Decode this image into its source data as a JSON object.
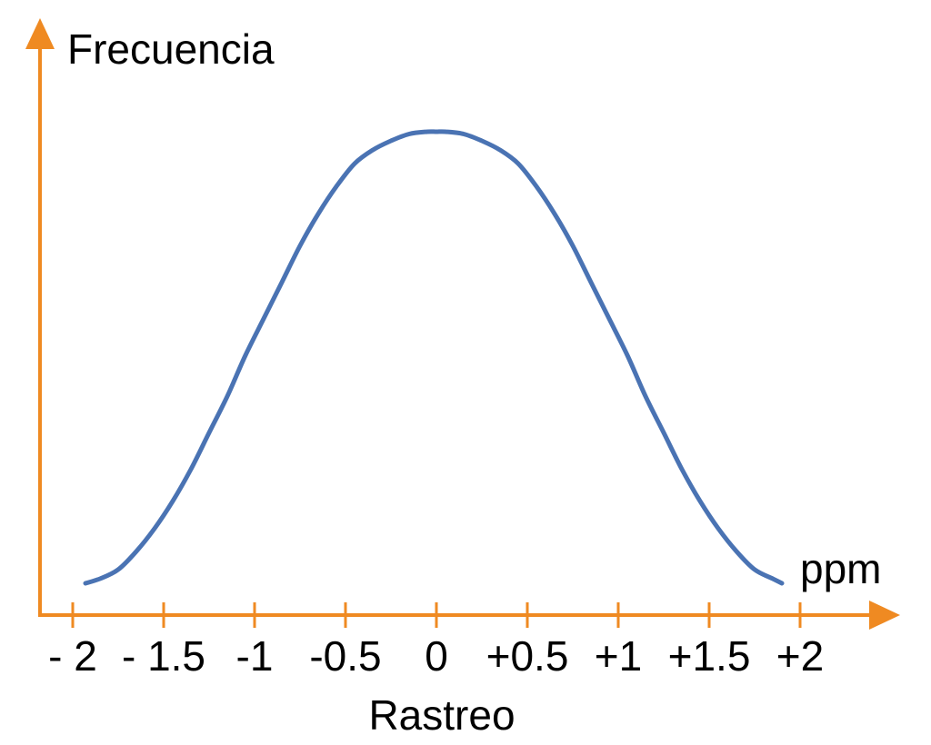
{
  "chart_data": {
    "type": "line",
    "title": "",
    "ylabel": "Frecuencia",
    "xlabel": "Rastreo",
    "xunit": "ppm",
    "xlim": [
      -2,
      2
    ],
    "ticks": [
      {
        "value": -2,
        "label": "- 2"
      },
      {
        "value": -1.5,
        "label": "- 1.5"
      },
      {
        "value": -1,
        "label": "-1"
      },
      {
        "value": -0.5,
        "label": "-0.5"
      },
      {
        "value": 0,
        "label": "0"
      },
      {
        "value": 0.5,
        "label": "+0.5"
      },
      {
        "value": 1,
        "label": "+1"
      },
      {
        "value": 1.5,
        "label": "+1.5"
      },
      {
        "value": 2,
        "label": "+2"
      }
    ],
    "series": [
      {
        "x": [
          -1.93,
          -1.85,
          -1.75,
          -1.65,
          -1.55,
          -1.45,
          -1.35,
          -1.25,
          -1.15,
          -1.05,
          -0.95,
          -0.85,
          -0.75,
          -0.65,
          -0.55,
          -0.45,
          -0.35,
          -0.25,
          -0.15,
          -0.05,
          0,
          0.05,
          0.15,
          0.25,
          0.35,
          0.45,
          0.55,
          0.65,
          0.75,
          0.85,
          0.95,
          1.05,
          1.15,
          1.25,
          1.35,
          1.45,
          1.55,
          1.65,
          1.75,
          1.85,
          1.9
        ],
        "y": [
          0.01,
          0.02,
          0.04,
          0.08,
          0.13,
          0.19,
          0.26,
          0.34,
          0.42,
          0.51,
          0.59,
          0.67,
          0.75,
          0.82,
          0.88,
          0.93,
          0.96,
          0.98,
          0.995,
          1.0,
          1.0,
          1.0,
          0.995,
          0.98,
          0.96,
          0.93,
          0.88,
          0.82,
          0.75,
          0.67,
          0.59,
          0.51,
          0.42,
          0.34,
          0.26,
          0.19,
          0.13,
          0.08,
          0.04,
          0.02,
          0.01
        ]
      }
    ],
    "colors": {
      "axis": "#ef8a22",
      "curve": "#4a73b3"
    },
    "grid": false,
    "legend": "none"
  }
}
